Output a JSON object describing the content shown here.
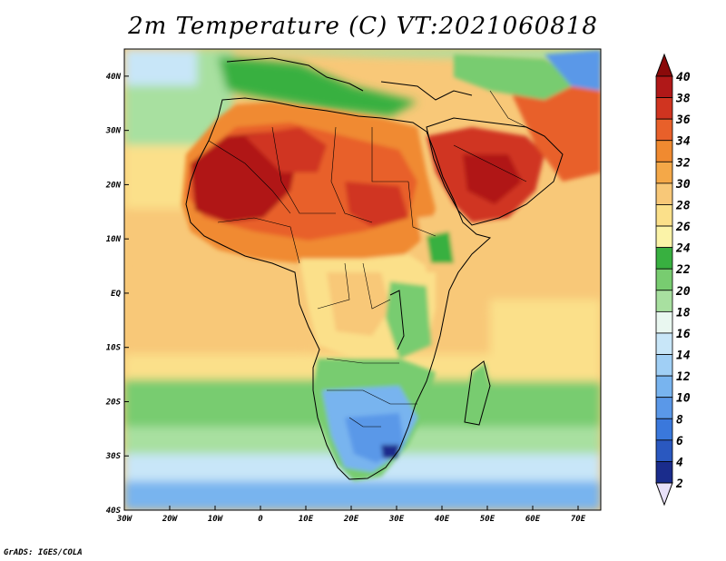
{
  "title": "2m Temperature (C) VT:2021060818",
  "credit": "GrADS: IGES/COLA",
  "map": {
    "lon_range": [
      -30,
      75
    ],
    "lat_range": [
      -40,
      45
    ],
    "x_tick_labels": [
      {
        "lon": -30,
        "label": "30W"
      },
      {
        "lon": -20,
        "label": "20W"
      },
      {
        "lon": -10,
        "label": "10W"
      },
      {
        "lon": 0,
        "label": "0"
      },
      {
        "lon": 10,
        "label": "10E"
      },
      {
        "lon": 20,
        "label": "20E"
      },
      {
        "lon": 30,
        "label": "30E"
      },
      {
        "lon": 40,
        "label": "40E"
      },
      {
        "lon": 50,
        "label": "50E"
      },
      {
        "lon": 60,
        "label": "60E"
      },
      {
        "lon": 70,
        "label": "70E"
      }
    ],
    "y_tick_labels": [
      {
        "lat": 40,
        "label": "40N"
      },
      {
        "lat": 30,
        "label": "30N"
      },
      {
        "lat": 20,
        "label": "20N"
      },
      {
        "lat": 10,
        "label": "10N"
      },
      {
        "lat": 0,
        "label": "EQ"
      },
      {
        "lat": -10,
        "label": "10S"
      },
      {
        "lat": -20,
        "label": "20S"
      },
      {
        "lat": -30,
        "label": "30S"
      },
      {
        "lat": -40,
        "label": "40S"
      }
    ]
  },
  "colorbar": {
    "labels": [
      "2",
      "4",
      "6",
      "8",
      "10",
      "12",
      "14",
      "16",
      "18",
      "20",
      "22",
      "24",
      "26",
      "28",
      "30",
      "32",
      "34",
      "36",
      "38",
      "40"
    ],
    "colors": [
      "#e8e0f8",
      "#1a2c8c",
      "#2a58c0",
      "#3a78dc",
      "#5a98e8",
      "#78b4ef",
      "#a0cff5",
      "#c8e6f8",
      "#e9f7f0",
      "#a8e0a0",
      "#78cc70",
      "#38b040",
      "#fbf3a8",
      "#fbe08a",
      "#f8c878",
      "#f4a848",
      "#f08a30",
      "#e8602a",
      "#d03420",
      "#b01818",
      "#8a0a0a"
    ]
  }
}
